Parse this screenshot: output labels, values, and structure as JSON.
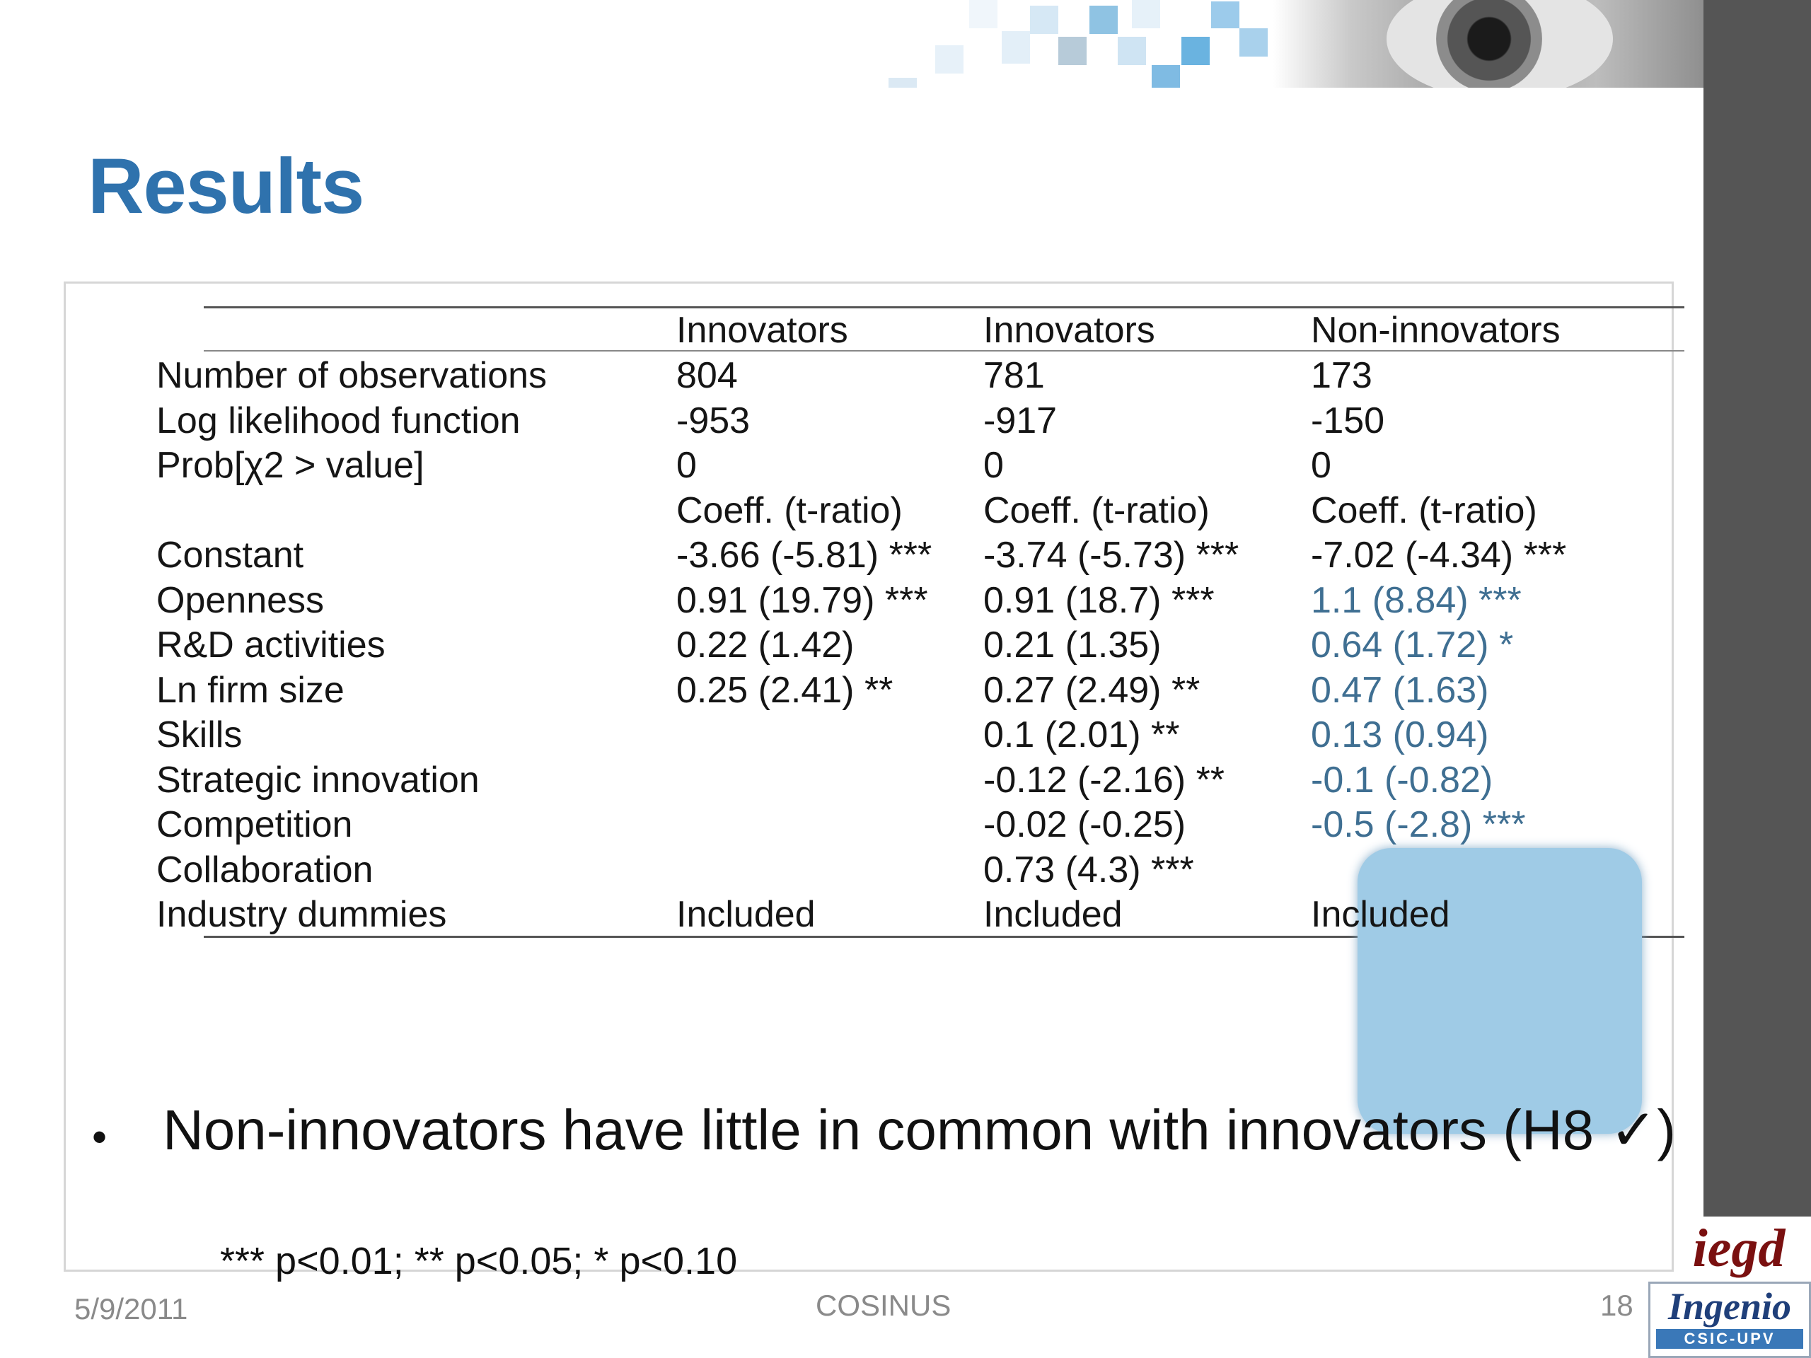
{
  "slide": {
    "title": "Results",
    "footer": {
      "date": "5/9/2011",
      "center": "COSINUS",
      "page": "18"
    },
    "logos": {
      "iegd": "iegd",
      "ingenio": "Ingenio",
      "ingenio_sub": "CSIC-UPV"
    }
  },
  "table": {
    "headers": [
      "",
      "Innovators",
      "Innovators",
      "Non-innovators"
    ],
    "rows": [
      [
        "Number of observations",
        "804",
        "781",
        "173"
      ],
      [
        "Log likelihood function",
        "-953",
        "-917",
        "-150"
      ],
      [
        "Prob[χ2 > value]",
        "0",
        "0",
        "0"
      ],
      [
        "",
        "Coeff. (t-ratio)",
        "Coeff. (t-ratio)",
        "Coeff. (t-ratio)"
      ],
      [
        "Constant",
        "-3.66 (-5.81) ***",
        "-3.74 (-5.73) ***",
        "-7.02 (-4.34) ***"
      ],
      [
        "Openness",
        "0.91 (19.79) ***",
        "0.91 (18.7) ***",
        "1.1 (8.84) ***"
      ],
      [
        "R&D activities",
        "0.22 (1.42)",
        "0.21 (1.35)",
        "0.64 (1.72) *"
      ],
      [
        "Ln firm size",
        "0.25 (2.41) **",
        "0.27 (2.49) **",
        "0.47 (1.63)"
      ],
      [
        "Skills",
        "",
        "0.1 (2.01) **",
        "0.13 (0.94)"
      ],
      [
        "Strategic innovation",
        "",
        "-0.12 (-2.16) **",
        "-0.1 (-0.82)"
      ],
      [
        "Competition",
        "",
        "-0.02 (-0.25)",
        "-0.5 (-2.8) ***"
      ],
      [
        "Collaboration",
        "",
        "0.73 (4.3) ***",
        ""
      ],
      [
        "Industry dummies",
        "Included",
        "Included",
        "Included"
      ]
    ],
    "footnote": "*** p<0.01; ** p<0.05; * p<0.10",
    "highlight_color": "#9fcbe6"
  },
  "bullet": {
    "text": "Non-innovators have little in common with innovators (H8 ✓)"
  },
  "colors": {
    "title": "#2f72ad",
    "side_bar": "#555555"
  }
}
